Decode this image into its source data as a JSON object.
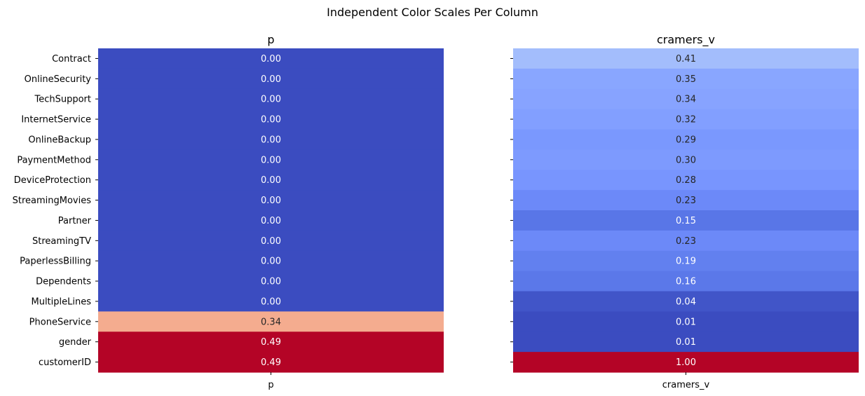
{
  "figure": {
    "suptitle": "Independent Color Scales Per Column"
  },
  "chart_data": [
    {
      "type": "heatmap",
      "title": "p",
      "xlabel": "",
      "ylabel": "",
      "x_tick_labels": [
        "p"
      ],
      "categories": [
        "Contract",
        "OnlineSecurity",
        "TechSupport",
        "InternetService",
        "OnlineBackup",
        "PaymentMethod",
        "DeviceProtection",
        "StreamingMovies",
        "Partner",
        "StreamingTV",
        "PaperlessBilling",
        "Dependents",
        "MultipleLines",
        "PhoneService",
        "gender",
        "customerID"
      ],
      "values": [
        0.0,
        0.0,
        0.0,
        0.0,
        0.0,
        0.0,
        0.0,
        0.0,
        0.0,
        0.0,
        0.0,
        0.0,
        0.0,
        0.34,
        0.49,
        0.49
      ],
      "value_labels": [
        "0.00",
        "0.00",
        "0.00",
        "0.00",
        "0.00",
        "0.00",
        "0.00",
        "0.00",
        "0.00",
        "0.00",
        "0.00",
        "0.00",
        "0.00",
        "0.34",
        "0.49",
        "0.49"
      ],
      "colormap": "coolwarm",
      "color_range": [
        0.0,
        0.49
      ],
      "colorbar": false,
      "show_y_tick_labels": true
    },
    {
      "type": "heatmap",
      "title": "cramers_v",
      "xlabel": "",
      "ylabel": "",
      "x_tick_labels": [
        "cramers_v"
      ],
      "categories": [
        "Contract",
        "OnlineSecurity",
        "TechSupport",
        "InternetService",
        "OnlineBackup",
        "PaymentMethod",
        "DeviceProtection",
        "StreamingMovies",
        "Partner",
        "StreamingTV",
        "PaperlessBilling",
        "Dependents",
        "MultipleLines",
        "PhoneService",
        "gender",
        "customerID"
      ],
      "values": [
        0.41,
        0.35,
        0.34,
        0.32,
        0.29,
        0.3,
        0.28,
        0.23,
        0.15,
        0.23,
        0.19,
        0.16,
        0.04,
        0.01,
        0.01,
        1.0
      ],
      "value_labels": [
        "0.41",
        "0.35",
        "0.34",
        "0.32",
        "0.29",
        "0.30",
        "0.28",
        "0.23",
        "0.15",
        "0.23",
        "0.19",
        "0.16",
        "0.04",
        "0.01",
        "0.01",
        "1.00"
      ],
      "colormap": "coolwarm",
      "color_range": [
        0.01,
        1.0
      ],
      "colorbar": false,
      "show_y_tick_labels": false
    }
  ]
}
